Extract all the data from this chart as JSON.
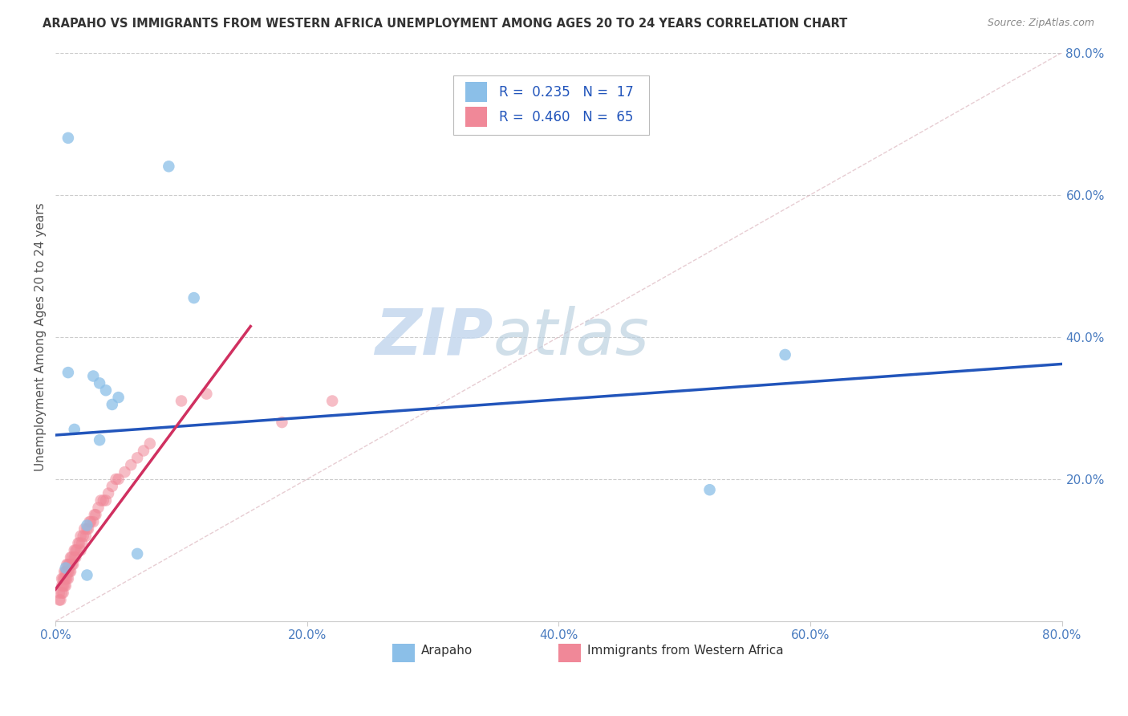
{
  "title": "ARAPAHO VS IMMIGRANTS FROM WESTERN AFRICA UNEMPLOYMENT AMONG AGES 20 TO 24 YEARS CORRELATION CHART",
  "source": "Source: ZipAtlas.com",
  "ylabel": "Unemployment Among Ages 20 to 24 years",
  "xlim": [
    0.0,
    0.8
  ],
  "ylim": [
    0.0,
    0.8
  ],
  "xticks": [
    0.0,
    0.2,
    0.4,
    0.6,
    0.8
  ],
  "yticks": [
    0.2,
    0.4,
    0.6,
    0.8
  ],
  "xticklabels": [
    "0.0%",
    "20.0%",
    "40.0%",
    "60.0%",
    "80.0%"
  ],
  "yticklabels": [
    "20.0%",
    "40.0%",
    "60.0%",
    "80.0%"
  ],
  "legend1_label": "Arapaho",
  "legend2_label": "Immigrants from Western Africa",
  "R1": 0.235,
  "N1": 17,
  "R2": 0.46,
  "N2": 65,
  "color1": "#8BBFE8",
  "color2": "#F08898",
  "line1_color": "#2255BB",
  "line2_color": "#D03060",
  "diagonal_color": "#DDB8C0",
  "watermark_zip": "ZIP",
  "watermark_atlas": "atlas",
  "background_color": "#FFFFFF",
  "arapaho_x": [
    0.01,
    0.09,
    0.01,
    0.03,
    0.035,
    0.04,
    0.05,
    0.045,
    0.035,
    0.025,
    0.015,
    0.008,
    0.025,
    0.58,
    0.52,
    0.11,
    0.065
  ],
  "arapaho_y": [
    0.68,
    0.64,
    0.35,
    0.345,
    0.335,
    0.325,
    0.315,
    0.305,
    0.255,
    0.135,
    0.27,
    0.075,
    0.065,
    0.375,
    0.185,
    0.455,
    0.095
  ],
  "immigrants_x": [
    0.003,
    0.003,
    0.004,
    0.005,
    0.005,
    0.005,
    0.006,
    0.006,
    0.006,
    0.007,
    0.007,
    0.007,
    0.008,
    0.008,
    0.008,
    0.009,
    0.009,
    0.009,
    0.01,
    0.01,
    0.01,
    0.011,
    0.011,
    0.012,
    0.012,
    0.013,
    0.013,
    0.014,
    0.015,
    0.015,
    0.016,
    0.016,
    0.017,
    0.018,
    0.019,
    0.02,
    0.02,
    0.021,
    0.022,
    0.023,
    0.024,
    0.025,
    0.026,
    0.027,
    0.028,
    0.03,
    0.031,
    0.032,
    0.034,
    0.036,
    0.038,
    0.04,
    0.042,
    0.045,
    0.048,
    0.05,
    0.055,
    0.06,
    0.065,
    0.07,
    0.075,
    0.1,
    0.12,
    0.18,
    0.22
  ],
  "immigrants_y": [
    0.03,
    0.04,
    0.03,
    0.04,
    0.05,
    0.06,
    0.04,
    0.05,
    0.06,
    0.05,
    0.06,
    0.07,
    0.05,
    0.06,
    0.07,
    0.06,
    0.07,
    0.08,
    0.06,
    0.07,
    0.08,
    0.07,
    0.08,
    0.07,
    0.09,
    0.08,
    0.09,
    0.08,
    0.09,
    0.1,
    0.09,
    0.1,
    0.1,
    0.11,
    0.11,
    0.1,
    0.12,
    0.11,
    0.12,
    0.13,
    0.12,
    0.13,
    0.13,
    0.14,
    0.14,
    0.14,
    0.15,
    0.15,
    0.16,
    0.17,
    0.17,
    0.17,
    0.18,
    0.19,
    0.2,
    0.2,
    0.21,
    0.22,
    0.23,
    0.24,
    0.25,
    0.31,
    0.32,
    0.28,
    0.31
  ],
  "blue_line_x0": 0.0,
  "blue_line_y0": 0.262,
  "blue_line_x1": 0.8,
  "blue_line_y1": 0.362,
  "pink_line_x0": 0.0,
  "pink_line_y0": 0.045,
  "pink_line_x1": 0.155,
  "pink_line_y1": 0.415
}
